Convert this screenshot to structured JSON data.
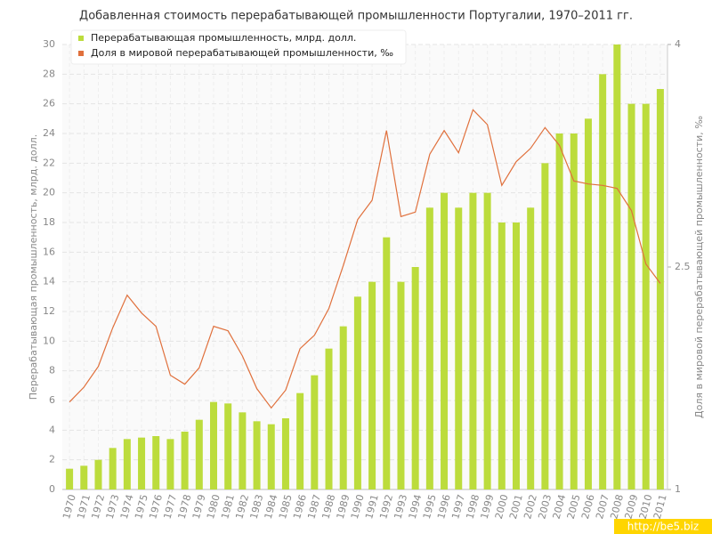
{
  "chart_data": {
    "type": "bar_line",
    "title": "Добавленная стоимость перерабатывающей промышленности Португалии, 1970–2011 гг.",
    "y_label": "Перерабатывающая промышленность, млрд. долл.",
    "y2_label": "Доля в мировой перерабатывающей промышленности, ‰",
    "watermark": "http://be5.biz",
    "categories": [
      "1970",
      "1971",
      "1972",
      "1973",
      "1974",
      "1975",
      "1976",
      "1977",
      "1978",
      "1979",
      "1980",
      "1981",
      "1982",
      "1983",
      "1984",
      "1985",
      "1986",
      "1987",
      "1988",
      "1989",
      "1990",
      "1991",
      "1992",
      "1993",
      "1994",
      "1995",
      "1996",
      "1997",
      "1998",
      "1999",
      "2000",
      "2001",
      "2002",
      "2003",
      "2004",
      "2005",
      "2006",
      "2007",
      "2008",
      "2009",
      "2010",
      "2011"
    ],
    "series": [
      {
        "name": "Перерабатывающая промышленность, млрд. долл.",
        "type": "bar",
        "color": "#bcdc3c",
        "values": [
          1.4,
          1.6,
          2.0,
          2.8,
          3.4,
          3.5,
          3.6,
          3.4,
          3.9,
          4.7,
          5.9,
          5.8,
          5.2,
          4.6,
          4.4,
          4.8,
          6.5,
          7.7,
          9.5,
          11,
          13,
          14,
          17,
          14,
          15,
          19,
          20,
          19,
          20,
          20,
          18,
          18,
          19,
          22,
          24,
          24,
          25,
          28,
          30,
          26,
          26,
          27
        ]
      },
      {
        "name": "Доля в мировой перерабатывающей промышленности, ‰",
        "type": "line",
        "axis": "y2",
        "color": "#e0703c",
        "values": [
          1.59,
          1.69,
          1.83,
          2.09,
          2.31,
          2.19,
          2.1,
          1.77,
          1.71,
          1.82,
          2.1,
          2.07,
          1.9,
          1.68,
          1.55,
          1.67,
          1.95,
          2.04,
          2.22,
          2.51,
          2.82,
          2.95,
          3.42,
          2.84,
          2.87,
          3.26,
          3.42,
          3.27,
          3.56,
          3.46,
          3.05,
          3.21,
          3.3,
          3.44,
          3.32,
          3.08,
          3.06,
          3.05,
          3.03,
          2.88,
          2.52,
          2.39
        ]
      }
    ],
    "ylim": [
      0,
      30
    ],
    "yticks": [
      0,
      2,
      4,
      6,
      8,
      10,
      12,
      14,
      16,
      18,
      20,
      22,
      24,
      26,
      28,
      30
    ],
    "y2lim": [
      1,
      4
    ],
    "y2ticks": [
      1,
      2.5,
      4
    ],
    "grid": true,
    "legend": "top-left"
  }
}
